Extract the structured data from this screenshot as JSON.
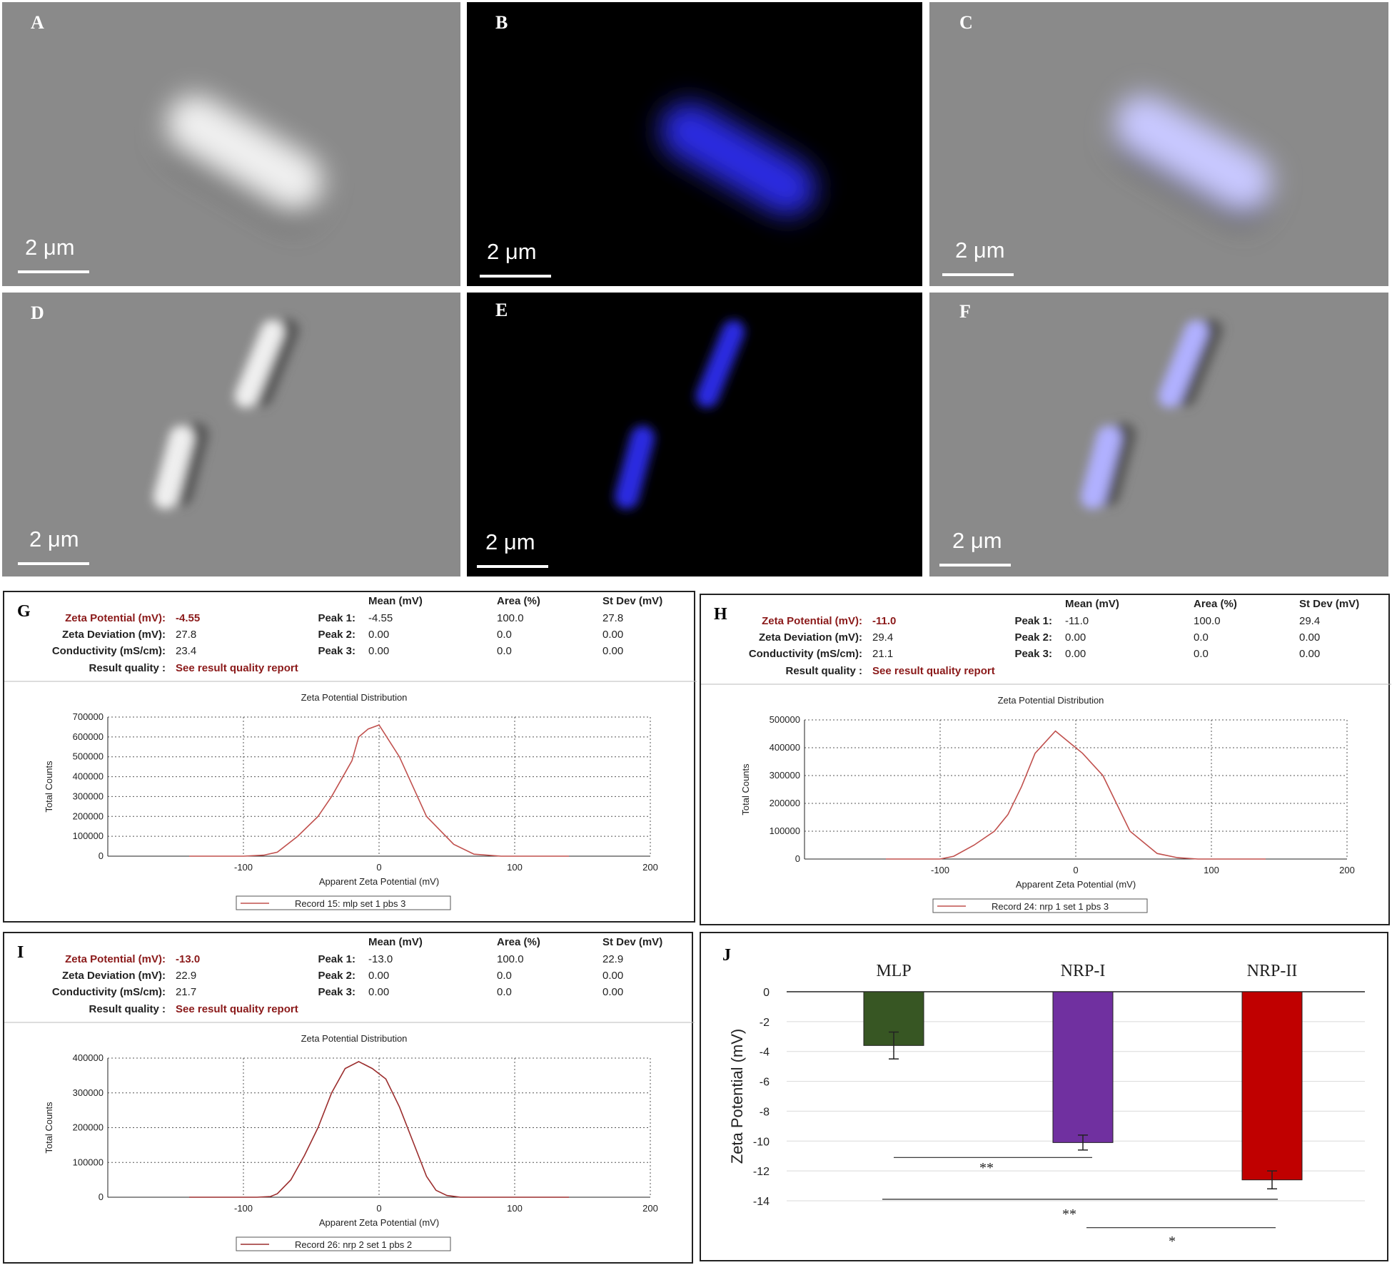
{
  "microscopy": [
    {
      "letter": "A",
      "scale": "2 μm",
      "mode": "bright",
      "tint": "#ffffff"
    },
    {
      "letter": "B",
      "scale": "2 μm",
      "mode": "fluor",
      "tint": "#2a2ae0"
    },
    {
      "letter": "C",
      "scale": "2 μm",
      "mode": "merge",
      "tint": "#c8c8ff"
    },
    {
      "letter": "D",
      "scale": "2 μm",
      "mode": "bright",
      "tint": "#ffffff"
    },
    {
      "letter": "E",
      "scale": "2 μm",
      "mode": "fluor",
      "tint": "#2a2ae0"
    },
    {
      "letter": "F",
      "scale": "2 μm",
      "mode": "merge",
      "tint": "#b0b0ff"
    }
  ],
  "zeta_panels": [
    {
      "letter": "G",
      "zeta_label": "Zeta Potential (mV):",
      "zeta_value": "-4.55",
      "dev_label": "Zeta Deviation (mV):",
      "dev_value": "27.8",
      "cond_label": "Conductivity (mS/cm):",
      "cond_value": "23.4",
      "quality_label": "Result quality :",
      "quality_value": "See result quality report",
      "col_mean": "Mean (mV)",
      "col_area": "Area (%)",
      "col_sd": "St Dev (mV)",
      "peaks": [
        {
          "label": "Peak 1:",
          "mean": "-4.55",
          "area": "100.0",
          "sd": "27.8"
        },
        {
          "label": "Peak 2:",
          "mean": "0.00",
          "area": "0.0",
          "sd": "0.00"
        },
        {
          "label": "Peak 3:",
          "mean": "0.00",
          "area": "0.0",
          "sd": "0.00"
        }
      ],
      "chart_title": "Zeta Potential Distribution",
      "ylabel": "Total Counts",
      "xlabel": "Apparent Zeta Potential (mV)",
      "legend": "Record 15: mlp set 1 pbs 3"
    },
    {
      "letter": "H",
      "zeta_label": "Zeta Potential (mV):",
      "zeta_value": "-11.0",
      "dev_label": "Zeta Deviation (mV):",
      "dev_value": "29.4",
      "cond_label": "Conductivity (mS/cm):",
      "cond_value": "21.1",
      "quality_label": "Result quality :",
      "quality_value": "See result quality report",
      "col_mean": "Mean (mV)",
      "col_area": "Area (%)",
      "col_sd": "St Dev (mV)",
      "peaks": [
        {
          "label": "Peak 1:",
          "mean": "-11.0",
          "area": "100.0",
          "sd": "29.4"
        },
        {
          "label": "Peak 2:",
          "mean": "0.00",
          "area": "0.0",
          "sd": "0.00"
        },
        {
          "label": "Peak 3:",
          "mean": "0.00",
          "area": "0.0",
          "sd": "0.00"
        }
      ],
      "chart_title": "Zeta Potential Distribution",
      "ylabel": "Total Counts",
      "xlabel": "Apparent Zeta Potential (mV)",
      "legend": "Record 24: nrp 1 set 1 pbs 3"
    },
    {
      "letter": "I",
      "zeta_label": "Zeta Potential (mV):",
      "zeta_value": "-13.0",
      "dev_label": "Zeta Deviation (mV):",
      "dev_value": "22.9",
      "cond_label": "Conductivity (mS/cm):",
      "cond_value": "21.7",
      "quality_label": "Result quality :",
      "quality_value": "See result quality report",
      "col_mean": "Mean (mV)",
      "col_area": "Area (%)",
      "col_sd": "St Dev (mV)",
      "peaks": [
        {
          "label": "Peak 1:",
          "mean": "-13.0",
          "area": "100.0",
          "sd": "22.9"
        },
        {
          "label": "Peak 2:",
          "mean": "0.00",
          "area": "0.0",
          "sd": "0.00"
        },
        {
          "label": "Peak 3:",
          "mean": "0.00",
          "area": "0.0",
          "sd": "0.00"
        }
      ],
      "chart_title": "Zeta Potential Distribution",
      "ylabel": "Total Counts",
      "xlabel": "Apparent Zeta Potential (mV)",
      "legend": "Record 26: nrp 2 set 1 pbs 2"
    }
  ],
  "bar_panel": {
    "letter": "J"
  },
  "chart_data": [
    {
      "type": "line",
      "title": "Zeta Potential Distribution",
      "xlabel": "Apparent Zeta Potential (mV)",
      "ylabel": "Total Counts",
      "xlim": [
        -200,
        200
      ],
      "ylim": [
        0,
        700000
      ],
      "xticks": [
        -100,
        0,
        100,
        200
      ],
      "yticks": [
        0,
        100000,
        200000,
        300000,
        400000,
        500000,
        600000,
        700000
      ],
      "grid": true,
      "legend_position": "bottom",
      "series": [
        {
          "name": "Record 15: mlp set 1 pbs 3",
          "color": "#c0504d",
          "x": [
            -140,
            -100,
            -85,
            -75,
            -60,
            -45,
            -35,
            -20,
            -15,
            -8,
            0,
            15,
            35,
            55,
            70,
            90,
            110,
            140
          ],
          "y": [
            0,
            0,
            5000,
            20000,
            100000,
            200000,
            300000,
            480000,
            600000,
            640000,
            660000,
            500000,
            200000,
            60000,
            10000,
            0,
            0,
            0
          ]
        }
      ]
    },
    {
      "type": "line",
      "title": "Zeta Potential Distribution",
      "xlabel": "Apparent Zeta Potential (mV)",
      "ylabel": "Total Counts",
      "xlim": [
        -200,
        200
      ],
      "ylim": [
        0,
        500000
      ],
      "xticks": [
        -100,
        0,
        100,
        200
      ],
      "yticks": [
        0,
        100000,
        200000,
        300000,
        400000,
        500000
      ],
      "grid": true,
      "legend_position": "bottom",
      "series": [
        {
          "name": "Record 24: nrp 1 set 1 pbs 3",
          "color": "#c0504d",
          "x": [
            -140,
            -100,
            -90,
            -75,
            -60,
            -50,
            -40,
            -30,
            -15,
            -5,
            5,
            20,
            40,
            60,
            75,
            90,
            110,
            140
          ],
          "y": [
            0,
            0,
            10000,
            50000,
            100000,
            160000,
            260000,
            380000,
            460000,
            420000,
            380000,
            300000,
            100000,
            20000,
            5000,
            0,
            0,
            0
          ]
        }
      ]
    },
    {
      "type": "line",
      "title": "Zeta Potential Distribution",
      "xlabel": "Apparent Zeta Potential (mV)",
      "ylabel": "Total Counts",
      "xlim": [
        -200,
        200
      ],
      "ylim": [
        0,
        400000
      ],
      "xticks": [
        -100,
        0,
        100,
        200
      ],
      "yticks": [
        0,
        100000,
        200000,
        300000,
        400000
      ],
      "grid": true,
      "legend_position": "bottom",
      "series": [
        {
          "name": "Record 26: nrp 2 set 1 pbs 2",
          "color": "#9b2d2d",
          "x": [
            -140,
            -90,
            -80,
            -75,
            -65,
            -55,
            -45,
            -35,
            -25,
            -15,
            -5,
            5,
            15,
            25,
            35,
            42,
            50,
            60,
            140
          ],
          "y": [
            0,
            0,
            2000,
            10000,
            50000,
            120000,
            200000,
            300000,
            370000,
            390000,
            370000,
            340000,
            260000,
            160000,
            60000,
            20000,
            5000,
            0,
            0
          ]
        }
      ]
    },
    {
      "type": "bar",
      "categories": [
        "MLP",
        "NRP-I",
        "NRP-II"
      ],
      "values": [
        -3.6,
        -10.1,
        -12.6
      ],
      "errors": [
        0.9,
        0.5,
        0.6
      ],
      "colors": [
        "#375623",
        "#7030a0",
        "#c00000"
      ],
      "ylabel": "Zeta Potential (mV)",
      "ylim": [
        -14,
        0
      ],
      "yticks": [
        0,
        -2,
        -4,
        -6,
        -8,
        -10,
        -12,
        -14
      ],
      "grid": true,
      "significance": [
        {
          "from": "MLP",
          "to": "NRP-I",
          "label": "**"
        },
        {
          "from": "MLP",
          "to": "NRP-II",
          "label": "**"
        },
        {
          "from": "NRP-I",
          "to": "NRP-II",
          "label": "*"
        }
      ]
    }
  ]
}
